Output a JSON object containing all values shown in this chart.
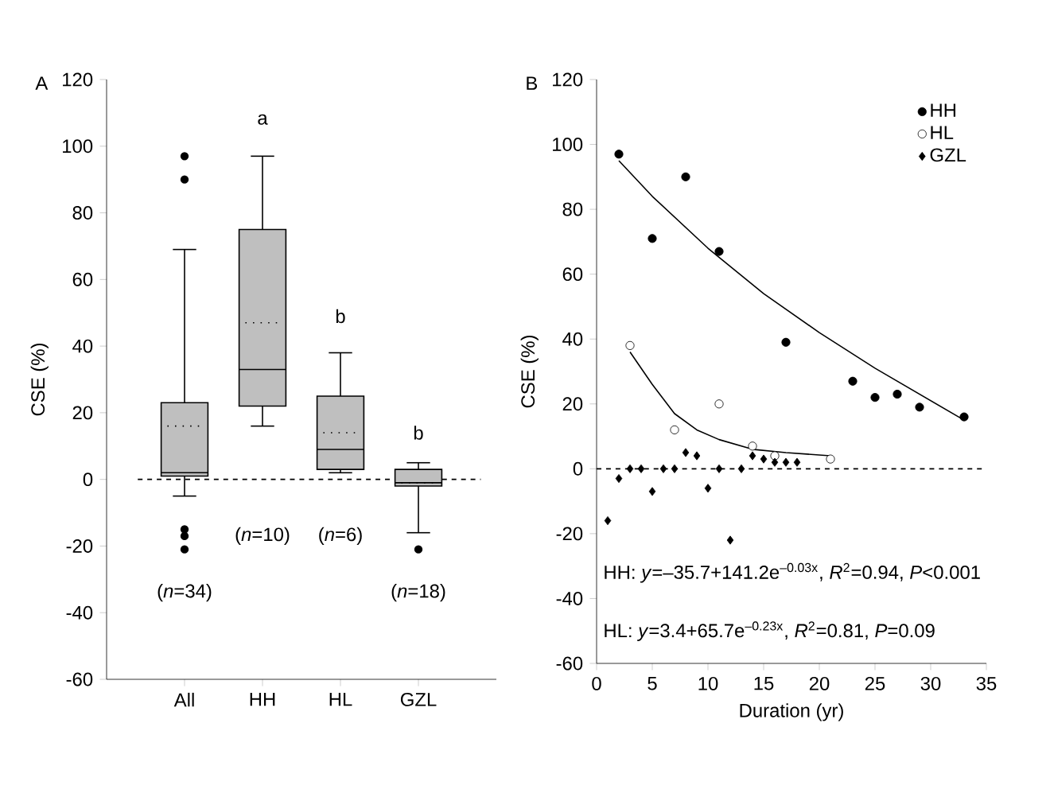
{
  "chart_data": [
    {
      "type": "box",
      "title": "A",
      "ylabel": "CSE (%)",
      "categories": [
        "All",
        "HH",
        "HL",
        "GZL"
      ],
      "color": "#bfbfbf",
      "ylim": [
        -60,
        120
      ],
      "yticks": [
        -60,
        -40,
        -20,
        0,
        20,
        40,
        60,
        80,
        100,
        120
      ],
      "boxes": [
        {
          "low": -5,
          "q1": 1,
          "median": 2,
          "q3": 23,
          "high": 69,
          "mean": 16,
          "outliers": [
            97,
            90,
            -15,
            -17,
            -21
          ]
        },
        {
          "low": 16,
          "q1": 22,
          "median": 33,
          "q3": 75,
          "high": 97,
          "mean": 47
        },
        {
          "low": 2,
          "q1": 3,
          "median": 9,
          "q3": 25,
          "high": 38,
          "mean": 14
        },
        {
          "low": -16,
          "q1": -2,
          "median": -1,
          "q3": 3,
          "high": 5,
          "mean": -1,
          "outliers": [
            -21
          ]
        }
      ],
      "ref_lines": [
        {
          "axis": "y",
          "value": 0,
          "line_style": "dashed"
        }
      ],
      "annotations": [
        "a",
        "b",
        "b",
        "(*n*=34)",
        "(*n*=10)",
        "(*n*=6)",
        "(*n*=18)"
      ]
    },
    {
      "type": "scatter",
      "title": "B",
      "xlabel": "Duration (yr)",
      "ylabel": "CSE (%)",
      "xlim": [
        0,
        35
      ],
      "xticks": [
        0,
        5,
        10,
        15,
        20,
        25,
        30,
        35
      ],
      "ylim": [
        -60,
        120
      ],
      "yticks": [
        -60,
        -40,
        -20,
        0,
        20,
        40,
        60,
        80,
        100,
        120
      ],
      "legend": "top right",
      "series": [
        {
          "name": "HH",
          "color": "#000000",
          "marker": "circle",
          "x": [
            2,
            5,
            8,
            11,
            17,
            23,
            25,
            27,
            29,
            33
          ],
          "values": [
            97,
            71,
            90,
            67,
            39,
            27,
            22,
            23,
            19,
            16
          ]
        },
        {
          "name": "HL",
          "color": "#ffffff",
          "marker": "circle",
          "x": [
            3,
            7,
            11,
            14,
            16,
            21
          ],
          "values": [
            38,
            12,
            20,
            7,
            4,
            3
          ]
        },
        {
          "name": "GZL",
          "color": "#000000",
          "marker": "diamond",
          "x": [
            1,
            2,
            3,
            4,
            5,
            6,
            7,
            8,
            9,
            10,
            11,
            12,
            13,
            14,
            15,
            16,
            17,
            18
          ],
          "values": [
            -16,
            -3,
            0,
            0,
            -7,
            0,
            0,
            5,
            4,
            -6,
            0,
            -22,
            0,
            4,
            3,
            2,
            2,
            2
          ]
        },
        {
          "type": "line",
          "color": "#000000",
          "marker": "none",
          "x": [
            2,
            5,
            10,
            15,
            20,
            25,
            30,
            33
          ],
          "values": [
            95,
            84,
            68,
            54,
            42,
            31,
            21,
            15
          ]
        },
        {
          "type": "line",
          "color": "#000000",
          "marker": "none",
          "x": [
            3,
            5,
            7,
            9,
            11,
            14,
            17,
            21
          ],
          "values": [
            36,
            26,
            17,
            12,
            9,
            6,
            5,
            4
          ]
        }
      ],
      "ref_lines": [
        {
          "axis": "y",
          "value": 0,
          "line_style": "dashed"
        }
      ],
      "annotations": [
        "HH: *y*=–35.7+141.2e$^{–0.03x}$, *R*$^{2}$=0.94, *P*<0.001",
        "HL: *y*=3.4+65.7e$^{–0.23x}$, *R*$^{2}$=0.81, *P*=0.09"
      ]
    }
  ]
}
